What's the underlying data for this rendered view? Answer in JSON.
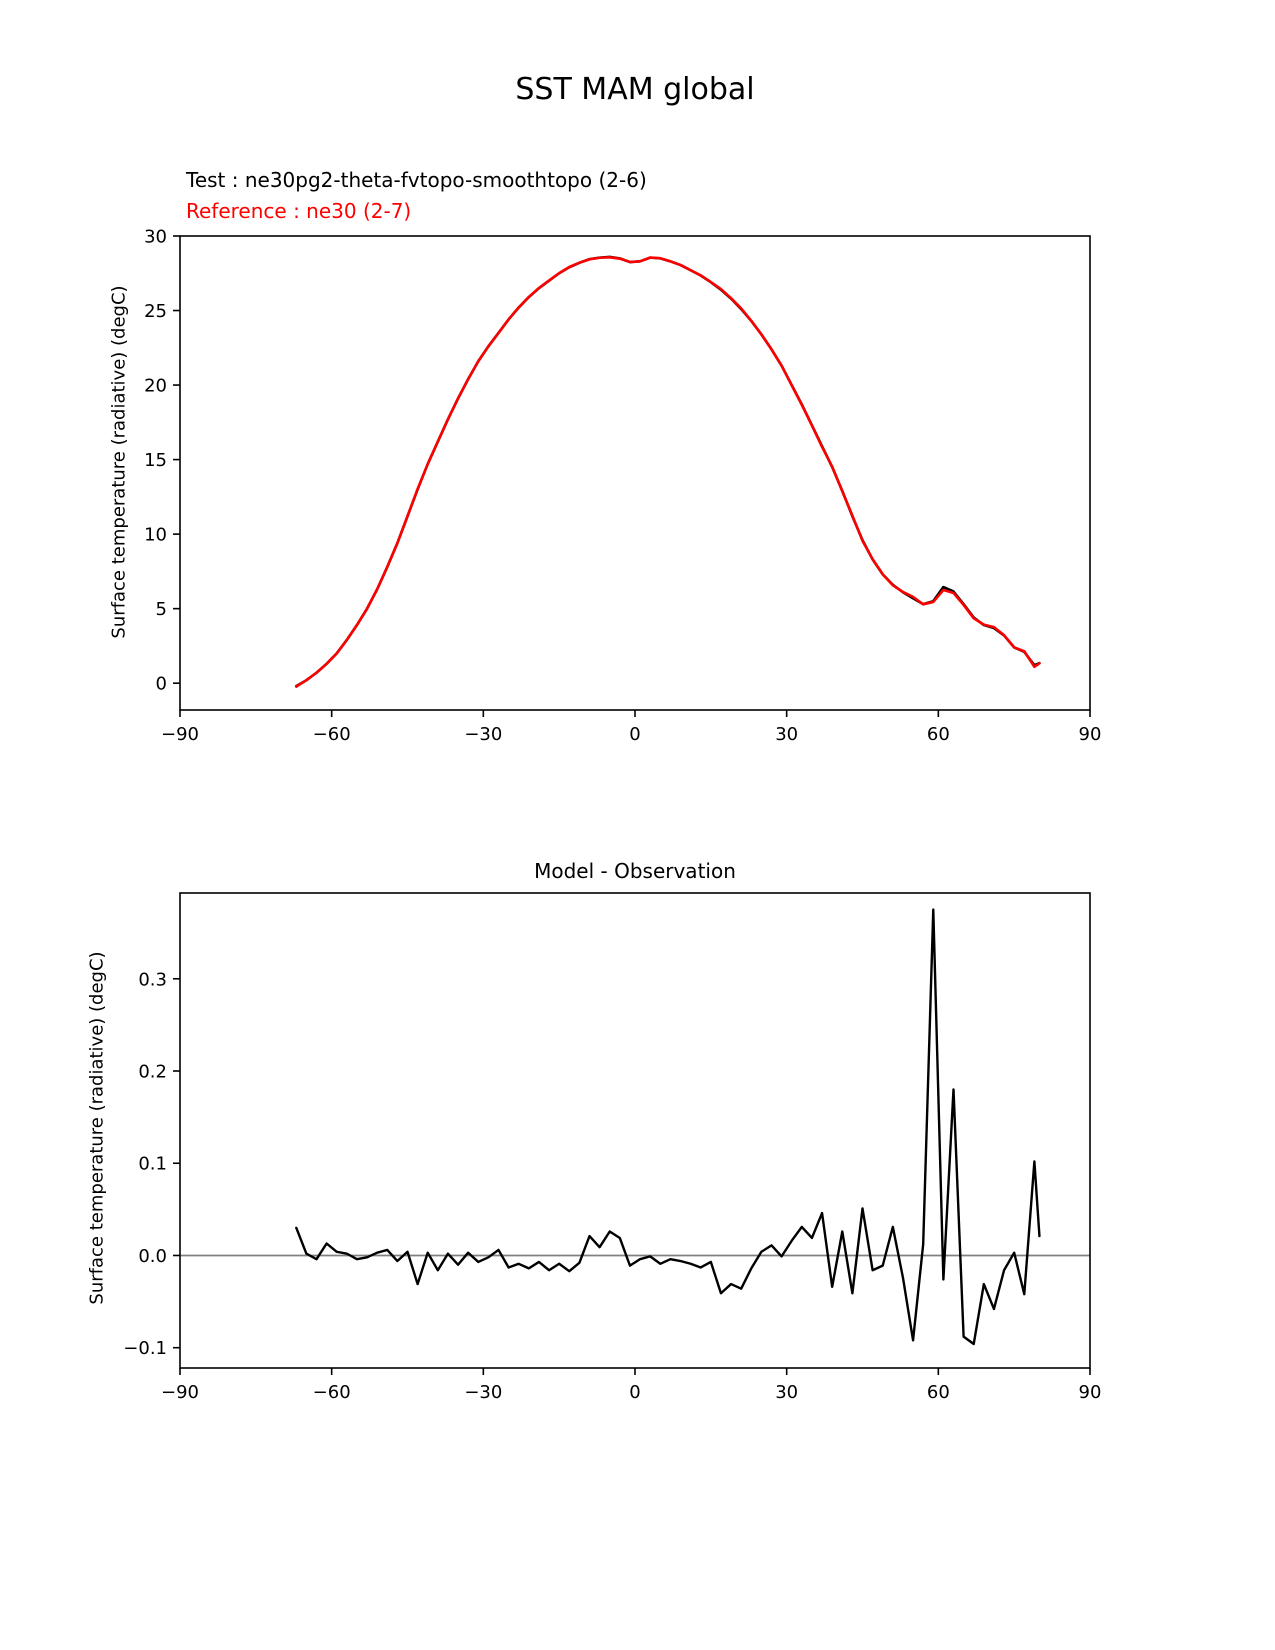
{
  "figure": {
    "title": "SST MAM global",
    "test_label": "Test : ne30pg2-theta-fvtopo-smoothtopo (2-6)",
    "reference_label": "Reference : ne30 (2-7)",
    "colors": {
      "test": "#000000",
      "reference": "#ff0000",
      "zero_line": "#808080",
      "frame": "#000000"
    }
  },
  "chart_data": [
    {
      "type": "line",
      "title": "",
      "xlabel": "",
      "ylabel": "Surface temperature (radiative) (degC)",
      "xlim": [
        -90,
        90
      ],
      "ylim": [
        -1.8,
        30
      ],
      "xticks": [
        -90,
        -60,
        -30,
        0,
        30,
        60,
        90
      ],
      "xtick_labels": [
        "−90",
        "−60",
        "−30",
        "0",
        "30",
        "60",
        "90"
      ],
      "yticks": [
        0,
        5,
        10,
        15,
        20,
        25,
        30
      ],
      "ytick_labels": [
        "0",
        "5",
        "10",
        "15",
        "20",
        "25",
        "30"
      ],
      "grid": false,
      "legend_position": "above-left",
      "zero_line": false,
      "x": [
        -67,
        -65,
        -63,
        -61,
        -59,
        -57,
        -55,
        -53,
        -51,
        -49,
        -47,
        -45,
        -43,
        -41,
        -39,
        -37,
        -35,
        -33,
        -31,
        -29,
        -27,
        -25,
        -23,
        -21,
        -19,
        -17,
        -15,
        -13,
        -11,
        -9,
        -7,
        -5,
        -3,
        -1,
        1,
        3,
        5,
        7,
        9,
        11,
        13,
        15,
        17,
        19,
        21,
        23,
        25,
        27,
        29,
        31,
        33,
        35,
        37,
        39,
        41,
        43,
        45,
        47,
        49,
        51,
        53,
        55,
        57,
        59,
        61,
        63,
        65,
        67,
        69,
        71,
        73,
        75,
        77,
        79,
        80
      ],
      "series": [
        {
          "name": "Test : ne30pg2-theta-fvtopo-smoothtopo (2-6)",
          "color": "#000000",
          "values": [
            -0.2,
            0.2,
            0.7,
            1.3,
            2.0,
            2.9,
            3.9,
            5.0,
            6.3,
            7.8,
            9.4,
            11.2,
            13.0,
            14.7,
            16.2,
            17.7,
            19.1,
            20.4,
            21.6,
            22.6,
            23.5,
            24.4,
            25.2,
            25.9,
            26.5,
            27.0,
            27.5,
            27.9,
            28.2,
            28.45,
            28.55,
            28.6,
            28.5,
            28.25,
            28.3,
            28.55,
            28.5,
            28.3,
            28.05,
            27.7,
            27.35,
            26.9,
            26.4,
            25.8,
            25.1,
            24.3,
            23.4,
            22.4,
            21.3,
            20.0,
            18.7,
            17.3,
            15.9,
            14.5,
            12.9,
            11.2,
            9.6,
            8.3,
            7.3,
            6.6,
            6.1,
            5.7,
            5.3,
            5.5,
            6.45,
            6.15,
            5.3,
            4.4,
            3.9,
            3.7,
            3.2,
            2.4,
            2.1,
            1.2,
            1.35
          ]
        },
        {
          "name": "Reference : ne30 (2-7)",
          "color": "#ff0000",
          "values": [
            -0.23,
            0.2,
            0.7,
            1.3,
            2.0,
            2.9,
            3.9,
            5.0,
            6.3,
            7.8,
            9.4,
            11.2,
            13.03,
            14.7,
            16.22,
            17.7,
            19.11,
            20.4,
            21.6,
            22.6,
            23.49,
            24.41,
            25.21,
            25.91,
            26.51,
            27.02,
            27.51,
            27.92,
            28.21,
            28.43,
            28.54,
            28.57,
            28.48,
            28.26,
            28.3,
            28.55,
            28.51,
            28.3,
            28.06,
            27.71,
            27.36,
            26.91,
            26.44,
            25.83,
            25.14,
            24.31,
            23.4,
            22.39,
            21.3,
            19.98,
            18.67,
            17.28,
            15.85,
            14.53,
            12.87,
            11.24,
            9.55,
            8.32,
            7.31,
            6.57,
            6.12,
            5.79,
            5.29,
            5.45,
            6.25,
            6.05,
            5.25,
            4.35,
            3.93,
            3.76,
            3.22,
            2.4,
            2.14,
            1.1,
            1.33
          ]
        }
      ]
    },
    {
      "type": "line",
      "title": "Model - Observation",
      "xlabel": "",
      "ylabel": "Surface temperature (radiative) (degC)",
      "xlim": [
        -90,
        90
      ],
      "ylim": [
        -0.122,
        0.393
      ],
      "xticks": [
        -90,
        -60,
        -30,
        0,
        30,
        60,
        90
      ],
      "xtick_labels": [
        "−90",
        "−60",
        "−30",
        "0",
        "30",
        "60",
        "90"
      ],
      "yticks": [
        -0.1,
        0.0,
        0.1,
        0.2,
        0.3
      ],
      "ytick_labels": [
        "−0.1",
        "0.0",
        "0.1",
        "0.2",
        "0.3"
      ],
      "grid": false,
      "zero_line": true,
      "x": [
        -67,
        -65,
        -63,
        -61,
        -59,
        -57,
        -55,
        -53,
        -51,
        -49,
        -47,
        -45,
        -43,
        -41,
        -39,
        -37,
        -35,
        -33,
        -31,
        -29,
        -27,
        -25,
        -23,
        -21,
        -19,
        -17,
        -15,
        -13,
        -11,
        -9,
        -7,
        -5,
        -3,
        -1,
        1,
        3,
        5,
        7,
        9,
        11,
        13,
        15,
        17,
        19,
        21,
        23,
        25,
        27,
        29,
        31,
        33,
        35,
        37,
        39,
        41,
        43,
        45,
        47,
        49,
        51,
        53,
        55,
        57,
        59,
        61,
        63,
        65,
        67,
        69,
        71,
        73,
        75,
        77,
        79,
        80
      ],
      "series": [
        {
          "name": "Model - Observation",
          "color": "#000000",
          "values": [
            0.03,
            0.002,
            -0.004,
            0.013,
            0.004,
            0.002,
            -0.004,
            -0.002,
            0.003,
            0.006,
            -0.006,
            0.004,
            -0.031,
            0.003,
            -0.016,
            0.002,
            -0.01,
            0.003,
            -0.007,
            -0.002,
            0.006,
            -0.013,
            -0.009,
            -0.014,
            -0.007,
            -0.016,
            -0.009,
            -0.017,
            -0.008,
            0.021,
            0.009,
            0.026,
            0.019,
            -0.011,
            -0.004,
            -0.001,
            -0.009,
            -0.004,
            -0.006,
            -0.009,
            -0.013,
            -0.007,
            -0.041,
            -0.031,
            -0.036,
            -0.014,
            0.004,
            0.011,
            -0.001,
            0.016,
            0.031,
            0.019,
            0.046,
            -0.034,
            0.026,
            -0.041,
            0.051,
            -0.016,
            -0.011,
            0.031,
            -0.024,
            -0.092,
            0.012,
            0.375,
            -0.026,
            0.18,
            -0.088,
            -0.096,
            -0.031,
            -0.058,
            -0.016,
            0.003,
            -0.042,
            0.102,
            0.021
          ]
        }
      ]
    }
  ]
}
